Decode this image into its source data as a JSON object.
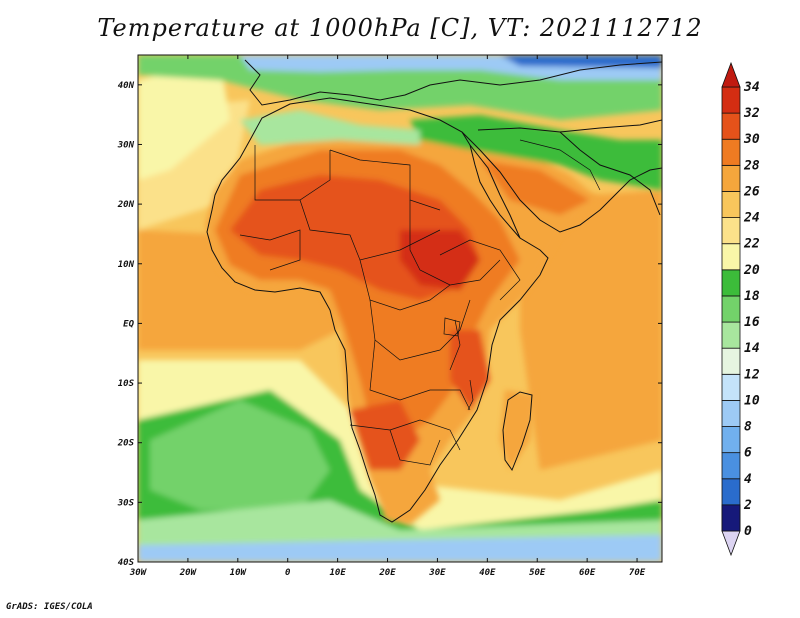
{
  "title": "Temperature at 1000hPa [C], VT: 2021112712",
  "footer": "GrADS: IGES/COLA",
  "map": {
    "variable": "Temperature at 1000hPa",
    "units": "C",
    "valid_time": "2021112712",
    "lon_range": [
      -30,
      75
    ],
    "lat_range": [
      -40,
      45
    ],
    "x_ticks": [
      {
        "value": -30,
        "label": "30W"
      },
      {
        "value": -20,
        "label": "20W"
      },
      {
        "value": -10,
        "label": "10W"
      },
      {
        "value": 0,
        "label": "0"
      },
      {
        "value": 10,
        "label": "10E"
      },
      {
        "value": 20,
        "label": "20E"
      },
      {
        "value": 30,
        "label": "30E"
      },
      {
        "value": 40,
        "label": "40E"
      },
      {
        "value": 50,
        "label": "50E"
      },
      {
        "value": 60,
        "label": "60E"
      },
      {
        "value": 70,
        "label": "70E"
      }
    ],
    "y_ticks": [
      {
        "value": 40,
        "label": "40N"
      },
      {
        "value": 30,
        "label": "30N"
      },
      {
        "value": 20,
        "label": "20N"
      },
      {
        "value": 10,
        "label": "10N"
      },
      {
        "value": 0,
        "label": "EQ"
      },
      {
        "value": -10,
        "label": "10S"
      },
      {
        "value": -20,
        "label": "20S"
      },
      {
        "value": -30,
        "label": "30S"
      },
      {
        "value": -40,
        "label": "40S"
      }
    ]
  },
  "colorbar": {
    "levels": [
      0,
      2,
      4,
      6,
      8,
      10,
      12,
      14,
      16,
      18,
      20,
      22,
      24,
      26,
      28,
      30,
      32,
      34
    ],
    "labels": [
      "0",
      "2",
      "4",
      "6",
      "8",
      "10",
      "12",
      "14",
      "16",
      "18",
      "20",
      "22",
      "24",
      "26",
      "28",
      "30",
      "32",
      "34"
    ],
    "colors": [
      "#16197a",
      "#1a3fa8",
      "#2a6ccc",
      "#4a90e0",
      "#71b0ee",
      "#9dcaf5",
      "#c4e3fa",
      "#e6f5e0",
      "#a8e69e",
      "#73d26a",
      "#3cbc3a",
      "#f9f6a8",
      "#fbe18a",
      "#f8c65c",
      "#f5a63c",
      "#ef7b22",
      "#e5521a",
      "#d42d12"
    ],
    "under_color": "#dcd4f2",
    "over_color": "#c01a10"
  }
}
